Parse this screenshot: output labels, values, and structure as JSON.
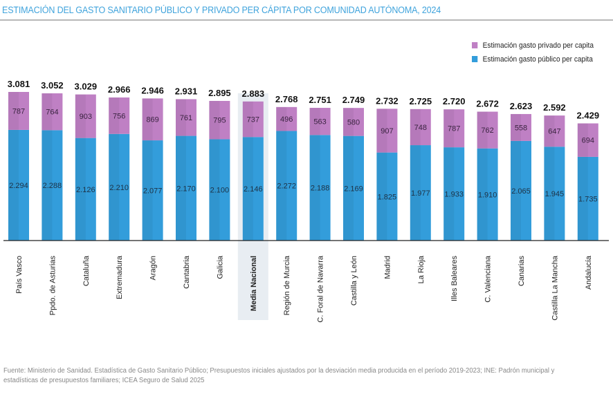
{
  "title": "ESTIMACIÓN DEL GASTO SANITARIO PÚBLICO Y PRIVADO PER CÁPITA POR COMUNIDAD AUTÓNOMA, 2024",
  "source": "Fuente: Ministerio de Sanidad. Estadística de Gasto Sanitario Público; Presupuestos iniciales ajustados por la desviación media producida en el período 2019-2023; INE: Padrón municipal y estadísticas de presupuestos familiares; ICEA Seguro de Salud 2025",
  "chart_data": {
    "type": "bar",
    "stacked": true,
    "title": "ESTIMACIÓN DEL GASTO SANITARIO PÚBLICO Y PRIVADO PER CÁPITA POR COMUNIDAD AUTÓNOMA, 2024",
    "xlabel": "",
    "ylabel": "",
    "ylim": [
      0,
      3081
    ],
    "grid": false,
    "legend_position": "top-right",
    "highlighted_category": "Media Nacional",
    "categories": [
      "País Vasco",
      "Ppdo. de Asturias",
      "Cataluña",
      "Extremadura",
      "Aragón",
      "Cantabria",
      "Galicia",
      "Media Nacional",
      "Región de Murcia",
      "C. Foral de Navarra",
      "Castilla y León",
      "Madrid",
      "La Rioja",
      "Illes Baleares",
      "C. Valenciana",
      "Canarias",
      "Castilla La Mancha",
      "Andalucía"
    ],
    "series": [
      {
        "name": "Estimación gasto público per capita",
        "color": "#339ddb",
        "values": [
          "2.294",
          "2.288",
          "2.126",
          "2.210",
          "2.077",
          "2.170",
          "2.100",
          "2.146",
          "2.272",
          "2.188",
          "2.169",
          "1.825",
          "1.977",
          "1.933",
          "1.910",
          "2.065",
          "1.945",
          "1.735"
        ]
      },
      {
        "name": "Estimación gasto privado per capita",
        "color": "#bf80c4",
        "values": [
          "787",
          "764",
          "903",
          "756",
          "869",
          "761",
          "795",
          "737",
          "496",
          "563",
          "580",
          "907",
          "748",
          "787",
          "762",
          "558",
          "647",
          "694"
        ]
      }
    ],
    "totals": [
      "3.081",
      "3.052",
      "3.029",
      "2.966",
      "2.946",
      "2.931",
      "2.895",
      "2.883",
      "2.768",
      "2.751",
      "2.749",
      "2.732",
      "2.725",
      "2.720",
      "2.672",
      "2.623",
      "2.592",
      "2.429"
    ]
  }
}
